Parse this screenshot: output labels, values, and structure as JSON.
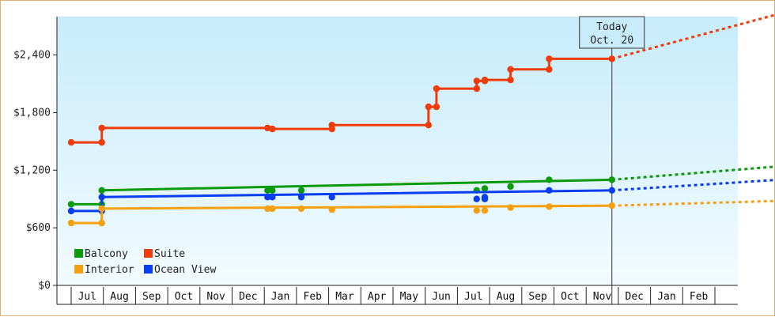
{
  "chart_data": {
    "type": "line",
    "step": true,
    "y_axis": {
      "min": 0,
      "max": 2800,
      "ticks": [
        0,
        600,
        1200,
        1800,
        2400
      ],
      "tick_labels": [
        "$0",
        "$600",
        "$1,200",
        "$1,800",
        "$2,400"
      ]
    },
    "x_axis": {
      "month_labels": [
        "Jul",
        "Aug",
        "Sep",
        "Oct",
        "Nov",
        "Dec",
        "Jan",
        "Feb",
        "Mar",
        "Apr",
        "May",
        "Jun",
        "Jul",
        "Aug",
        "Sep",
        "Oct",
        "Nov",
        "Dec",
        "Jan",
        "Feb"
      ]
    },
    "today_marker": {
      "line1": "Today",
      "line2": "Oct. 20",
      "index": 16.3
    },
    "legend": {
      "placement": "bottom-left",
      "items": [
        {
          "name": "Balcony",
          "color": "#0a9a0a"
        },
        {
          "name": "Suite",
          "color": "#f03c0a"
        },
        {
          "name": "Interior",
          "color": "#f5a010"
        },
        {
          "name": "Ocean View",
          "color": "#0a3cf0"
        }
      ]
    },
    "series": [
      {
        "name": "Suite",
        "color": "#f03c0a",
        "points": [
          [
            -0.5,
            1490
          ],
          [
            0.45,
            1490
          ],
          [
            0.45,
            1640
          ],
          [
            5.6,
            1640
          ],
          [
            5.75,
            1630
          ],
          [
            7.6,
            1630
          ],
          [
            7.6,
            1670
          ],
          [
            10.6,
            1670
          ],
          [
            10.6,
            1860
          ],
          [
            10.85,
            1860
          ],
          [
            10.85,
            2050
          ],
          [
            12.1,
            2050
          ],
          [
            12.1,
            2130
          ],
          [
            12.35,
            2130
          ],
          [
            12.35,
            2140
          ],
          [
            13.15,
            2140
          ],
          [
            13.15,
            2250
          ],
          [
            14.35,
            2250
          ],
          [
            14.35,
            2360
          ],
          [
            16.3,
            2360
          ]
        ],
        "markers": [
          [
            -0.5,
            1490
          ],
          [
            0.45,
            1490
          ],
          [
            0.45,
            1640
          ],
          [
            5.6,
            1640
          ],
          [
            5.75,
            1630
          ],
          [
            7.6,
            1630
          ],
          [
            7.6,
            1670
          ],
          [
            10.6,
            1670
          ],
          [
            10.6,
            1860
          ],
          [
            10.85,
            1860
          ],
          [
            10.85,
            2050
          ],
          [
            12.1,
            2050
          ],
          [
            12.1,
            2130
          ],
          [
            12.35,
            2130
          ],
          [
            12.35,
            2140
          ],
          [
            13.15,
            2140
          ],
          [
            13.15,
            2250
          ],
          [
            14.35,
            2250
          ],
          [
            14.35,
            2360
          ],
          [
            16.3,
            2360
          ]
        ],
        "forecast": [
          [
            16.3,
            2360
          ],
          [
            21.5,
            2830
          ]
        ]
      },
      {
        "name": "Balcony",
        "color": "#0a9a0a",
        "points": [
          [
            -0.5,
            845
          ],
          [
            0.45,
            845
          ],
          [
            0.45,
            990
          ],
          [
            16.3,
            1100
          ]
        ],
        "markers": [
          [
            -0.5,
            845
          ],
          [
            0.45,
            845
          ],
          [
            0.45,
            990
          ],
          [
            5.6,
            990
          ],
          [
            5.75,
            990
          ],
          [
            6.65,
            990
          ],
          [
            12.1,
            990
          ],
          [
            12.35,
            1010
          ],
          [
            13.15,
            1030
          ],
          [
            14.35,
            1100
          ],
          [
            16.3,
            1100
          ]
        ],
        "forecast": [
          [
            16.3,
            1100
          ],
          [
            21.5,
            1240
          ]
        ]
      },
      {
        "name": "Ocean View",
        "color": "#0a3cf0",
        "points": [
          [
            -0.5,
            775
          ],
          [
            0.45,
            775
          ],
          [
            0.45,
            920
          ],
          [
            16.3,
            990
          ]
        ],
        "markers": [
          [
            -0.5,
            775
          ],
          [
            0.45,
            775
          ],
          [
            0.45,
            920
          ],
          [
            5.6,
            920
          ],
          [
            5.75,
            920
          ],
          [
            6.65,
            920
          ],
          [
            7.6,
            920
          ],
          [
            12.1,
            900
          ],
          [
            12.35,
            900
          ],
          [
            12.35,
            920
          ],
          [
            14.35,
            990
          ],
          [
            16.3,
            990
          ]
        ],
        "forecast": [
          [
            16.3,
            990
          ],
          [
            21.5,
            1100
          ]
        ]
      },
      {
        "name": "Interior",
        "color": "#f5a010",
        "points": [
          [
            -0.5,
            650
          ],
          [
            0.45,
            650
          ],
          [
            0.45,
            800
          ],
          [
            16.3,
            830
          ]
        ],
        "markers": [
          [
            -0.5,
            650
          ],
          [
            0.45,
            650
          ],
          [
            0.45,
            800
          ],
          [
            5.6,
            800
          ],
          [
            5.75,
            800
          ],
          [
            6.65,
            800
          ],
          [
            7.6,
            790
          ],
          [
            12.1,
            780
          ],
          [
            12.35,
            780
          ],
          [
            13.15,
            810
          ],
          [
            14.35,
            820
          ],
          [
            16.3,
            830
          ]
        ],
        "forecast": [
          [
            16.3,
            830
          ],
          [
            21.5,
            880
          ]
        ]
      }
    ]
  }
}
